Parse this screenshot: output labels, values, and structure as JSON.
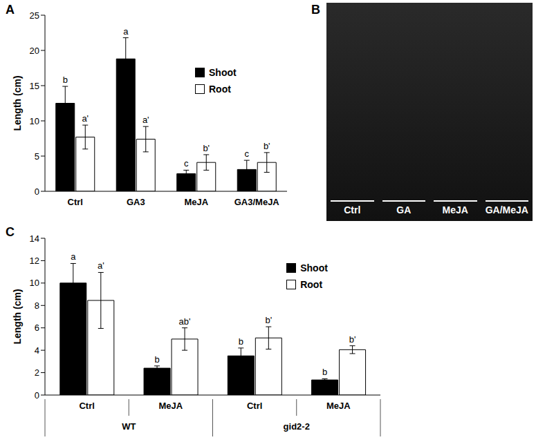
{
  "chart_data": [
    {
      "type": "bar",
      "panel": "A",
      "categories": [
        "Ctrl",
        "GA3",
        "MeJA",
        "GA3/MeJA"
      ],
      "y_label": "Length (cm)",
      "ylim": [
        0,
        25
      ],
      "yticks": [
        0,
        5,
        10,
        15,
        20,
        25
      ],
      "grid": false,
      "legend": "right",
      "series": [
        {
          "name": "Shoot",
          "color": "#000000",
          "values": [
            12.5,
            18.8,
            2.5,
            3.1
          ],
          "errors": [
            2.4,
            3.0,
            0.5,
            1.3
          ],
          "letters": [
            "b",
            "a",
            "c",
            "c"
          ]
        },
        {
          "name": "Root",
          "color": "#ffffff",
          "values": [
            7.7,
            7.4,
            4.1,
            4.1
          ],
          "errors": [
            1.7,
            1.8,
            1.1,
            1.4
          ],
          "letters": [
            "a'",
            "a'",
            "b'",
            "b'"
          ]
        }
      ]
    },
    {
      "type": "bar",
      "panel": "C",
      "categories": [
        "Ctrl",
        "MeJA",
        "Ctrl",
        "MeJA"
      ],
      "groups": [
        "WT",
        "WT",
        "gid2-2",
        "gid2-2"
      ],
      "y_label": "Length (cm)",
      "ylim": [
        0,
        14
      ],
      "yticks": [
        0,
        2,
        4,
        6,
        8,
        10,
        12,
        14
      ],
      "grid": false,
      "legend": "right",
      "series": [
        {
          "name": "Shoot",
          "color": "#000000",
          "values": [
            10.0,
            2.4,
            3.5,
            1.35
          ],
          "errors": [
            1.75,
            0.2,
            0.7,
            0.1
          ],
          "letters": [
            "a",
            "b",
            "b",
            "b"
          ]
        },
        {
          "name": "Root",
          "color": "#ffffff",
          "values": [
            8.45,
            5.0,
            5.1,
            4.05
          ],
          "errors": [
            2.5,
            1.0,
            1.0,
            0.35
          ],
          "letters": [
            "a'",
            "ab'",
            "b'",
            "b'"
          ]
        }
      ]
    }
  ],
  "photo": {
    "panel": "B",
    "labels": [
      "Ctrl",
      "GA",
      "MeJA",
      "GA/MeJA"
    ]
  }
}
